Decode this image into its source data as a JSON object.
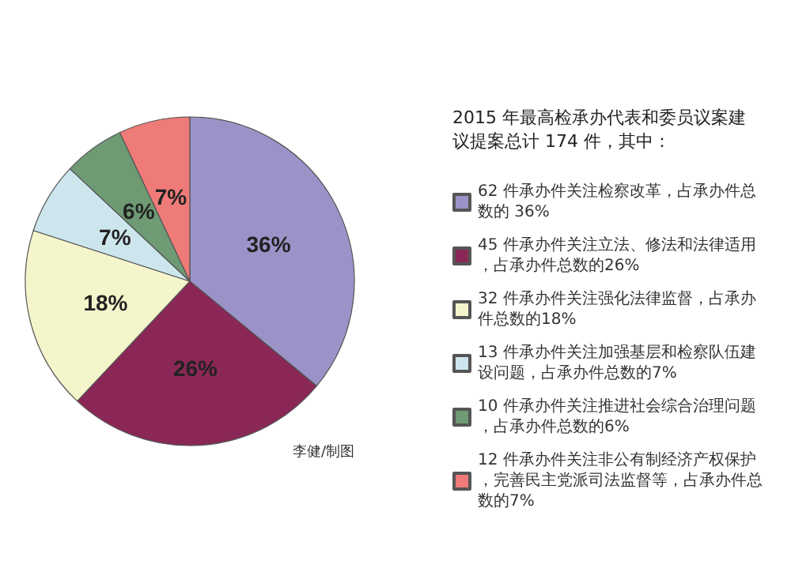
{
  "chart_data": {
    "type": "pie",
    "title": "2015 年最高检承办代表和委员议案建议提案总计 174 件，其中：",
    "categories": [
      "62 件承办件关注检察改革，占承办件总数的 36%",
      "45 件承办件关注立法、修法和法律适用，占承办件总数的26%",
      "32 件承办件关注强化法律监督，占承办件总数的18%",
      "13 件承办件关注加强基层和检察队伍建设问题，占承办件总数的7%",
      "10 件承办件关注推进社会综合治理问题，占承办件总数的6%",
      "12 件承办件关注非公有制经济产权保护，完善民主党派司法监督等，占承办件总数的7%"
    ],
    "values": [
      36,
      26,
      18,
      7,
      6,
      7
    ],
    "value_labels": [
      "36%",
      "26%",
      "18%",
      "7%",
      "6%",
      "7%"
    ],
    "colors": [
      "#9b93c8",
      "#8b2756",
      "#f5f5cc",
      "#cde6ee",
      "#6e9a74",
      "#ef7b78"
    ],
    "legend": "right",
    "annotations": [
      "李健/制图"
    ]
  }
}
